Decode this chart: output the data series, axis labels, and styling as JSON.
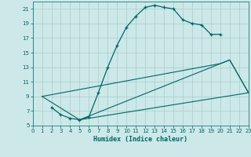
{
  "title": "",
  "xlabel": "Humidex (Indice chaleur)",
  "bg_color": "#cce8e8",
  "grid_color": "#aacccc",
  "line_color": "#006666",
  "xlim": [
    0,
    23
  ],
  "ylim": [
    5,
    22
  ],
  "yticks": [
    5,
    7,
    9,
    11,
    13,
    15,
    17,
    19,
    21
  ],
  "xticks": [
    0,
    1,
    2,
    3,
    4,
    5,
    6,
    7,
    8,
    9,
    10,
    11,
    12,
    13,
    14,
    15,
    16,
    17,
    18,
    19,
    20,
    21,
    22,
    23
  ],
  "curve_x": [
    2,
    3,
    4,
    5,
    6,
    7,
    8,
    9,
    10,
    11,
    12,
    13,
    14,
    15,
    16,
    17,
    18,
    19,
    20
  ],
  "curve_y": [
    7.5,
    6.5,
    6.0,
    5.8,
    6.2,
    9.5,
    13,
    16,
    18.5,
    20,
    21.2,
    21.5,
    21.2,
    21.0,
    19.5,
    19.0,
    18.8,
    17.5,
    17.5
  ],
  "line2_x": [
    1,
    20,
    21,
    23
  ],
  "line2_y": [
    9.0,
    13.5,
    14.0,
    9.5
  ],
  "line3_x": [
    1,
    5,
    23
  ],
  "line3_y": [
    9.0,
    5.8,
    9.5
  ],
  "line4_x": [
    5,
    21,
    23
  ],
  "line4_y": [
    5.8,
    14.0,
    9.5
  ]
}
